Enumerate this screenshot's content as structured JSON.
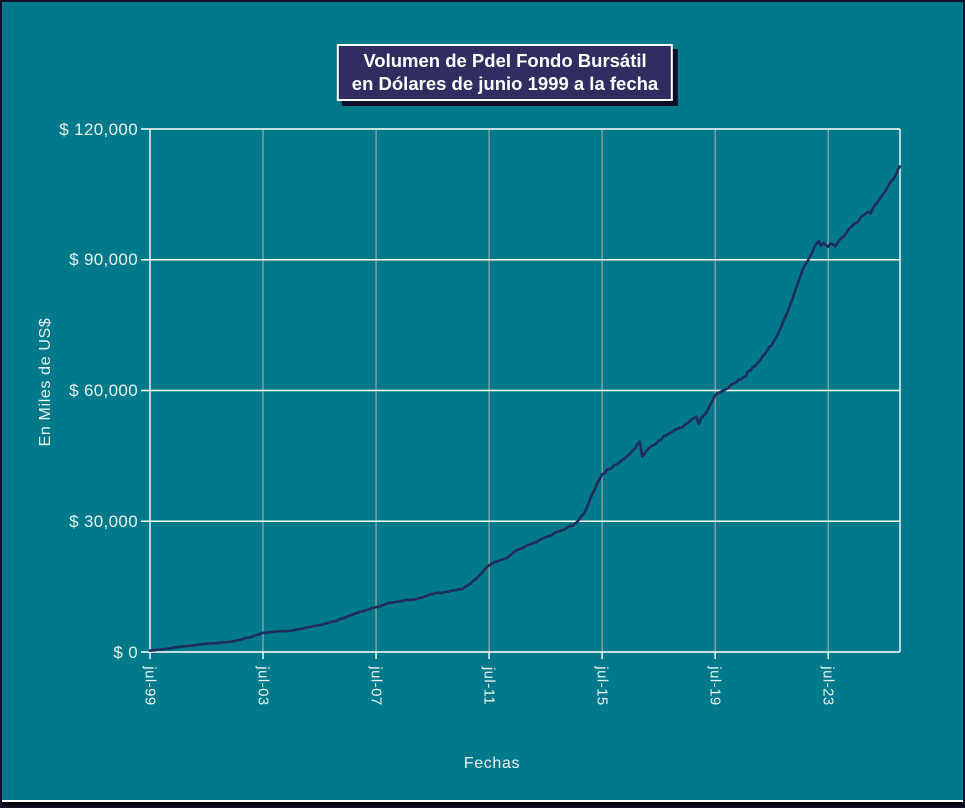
{
  "title": {
    "line1": "Volumen de PdeI Fondo Bursátil",
    "line2": "en Dólares de junio 1999 a la fecha"
  },
  "axes": {
    "y_title": "En Miles de US$",
    "x_title": "Fechas"
  },
  "chart_data": {
    "type": "line",
    "title": "Volumen de PdeI Fondo Bursátil en Dólares de junio 1999 a la fecha",
    "xlabel": "Fechas",
    "ylabel": "En Miles de US$",
    "ylim": [
      0,
      120000
    ],
    "grid": true,
    "legend": "none",
    "ytick_values": [
      0,
      30000,
      60000,
      90000,
      120000
    ],
    "ytick_labels": [
      "$ 0",
      "$ 30,000",
      "$ 60,000",
      "$ 90,000",
      "$ 120,000"
    ],
    "xtick_months": [
      0,
      48,
      96,
      144,
      192,
      240,
      288
    ],
    "xtick_labels": [
      "jul-99",
      "jul-03",
      "jul-07",
      "jul-11",
      "jul-15",
      "jul-19",
      "jul-23"
    ],
    "x_months_max": 318.5,
    "colors": {
      "background": "#00798A",
      "line": "#202D5A",
      "h_grid": "#FFFFFF",
      "v_grid": "#A6A6A6",
      "labels": "#EAF2F2",
      "title_bg": "#302E60",
      "title_shadow": "#0D0D26"
    },
    "series": [
      {
        "points": [
          [
            0,
            300
          ],
          [
            3,
            500
          ],
          [
            6,
            700
          ],
          [
            9,
            900
          ],
          [
            12,
            1100
          ],
          [
            15,
            1300
          ],
          [
            18,
            1500
          ],
          [
            21,
            1700
          ],
          [
            24,
            1900
          ],
          [
            27,
            2000
          ],
          [
            30,
            2150
          ],
          [
            33,
            2300
          ],
          [
            36,
            2500
          ],
          [
            39,
            2900
          ],
          [
            42,
            3300
          ],
          [
            45,
            3850
          ],
          [
            48,
            4400
          ],
          [
            51,
            4550
          ],
          [
            54,
            4700
          ],
          [
            57,
            4800
          ],
          [
            60,
            4900
          ],
          [
            63,
            5200
          ],
          [
            66,
            5600
          ],
          [
            69,
            5900
          ],
          [
            72,
            6200
          ],
          [
            75,
            6600
          ],
          [
            78,
            7000
          ],
          [
            81,
            7600
          ],
          [
            84,
            8200
          ],
          [
            87,
            8800
          ],
          [
            90,
            9300
          ],
          [
            93,
            9800
          ],
          [
            96,
            10300
          ],
          [
            99,
            10800
          ],
          [
            102,
            11300
          ],
          [
            105,
            11550
          ],
          [
            108,
            11800
          ],
          [
            111,
            12050
          ],
          [
            114,
            12300
          ],
          [
            117,
            12800
          ],
          [
            120,
            13300
          ],
          [
            123,
            13550
          ],
          [
            126,
            13800
          ],
          [
            129,
            14100
          ],
          [
            132,
            14400
          ],
          [
            135,
            15300
          ],
          [
            138,
            16600
          ],
          [
            141,
            18200
          ],
          [
            144,
            19900
          ],
          [
            147,
            20700
          ],
          [
            150,
            21300
          ],
          [
            153,
            22200
          ],
          [
            156,
            23400
          ],
          [
            159,
            24100
          ],
          [
            162,
            24800
          ],
          [
            165,
            25550
          ],
          [
            168,
            26300
          ],
          [
            171,
            27000
          ],
          [
            174,
            27700
          ],
          [
            177,
            28450
          ],
          [
            180,
            29200
          ],
          [
            182,
            30200
          ],
          [
            184,
            31600
          ],
          [
            186,
            33800
          ],
          [
            188,
            36400
          ],
          [
            190,
            38900
          ],
          [
            192,
            40800
          ],
          [
            195,
            41900
          ],
          [
            198,
            43000
          ],
          [
            201,
            44200
          ],
          [
            204,
            45600
          ],
          [
            206,
            46700
          ],
          [
            208,
            48300
          ],
          [
            209,
            44900
          ],
          [
            211,
            46300
          ],
          [
            214,
            47500
          ],
          [
            216,
            48500
          ],
          [
            219,
            49600
          ],
          [
            222,
            50600
          ],
          [
            225,
            51500
          ],
          [
            228,
            52400
          ],
          [
            230,
            53300
          ],
          [
            232,
            54000
          ],
          [
            233,
            52300
          ],
          [
            234,
            53600
          ],
          [
            236,
            54700
          ],
          [
            238,
            56800
          ],
          [
            240,
            58900
          ],
          [
            243,
            59900
          ],
          [
            246,
            60800
          ],
          [
            249,
            61900
          ],
          [
            252,
            63100
          ],
          [
            255,
            64600
          ],
          [
            258,
            66300
          ],
          [
            261,
            68300
          ],
          [
            264,
            70400
          ],
          [
            266,
            72300
          ],
          [
            268,
            74600
          ],
          [
            270,
            77100
          ],
          [
            272,
            79900
          ],
          [
            274,
            82900
          ],
          [
            276,
            86000
          ],
          [
            278,
            88600
          ],
          [
            280,
            90500
          ],
          [
            282,
            92800
          ],
          [
            283,
            93600
          ],
          [
            284,
            94300
          ],
          [
            285,
            93200
          ],
          [
            286,
            93900
          ],
          [
            288,
            93000
          ],
          [
            289,
            93700
          ],
          [
            291,
            93100
          ],
          [
            292,
            93900
          ],
          [
            294,
            95100
          ],
          [
            296,
            96400
          ],
          [
            297,
            97200
          ],
          [
            299,
            98300
          ],
          [
            301,
            99000
          ],
          [
            303,
            100200
          ],
          [
            305,
            101000
          ],
          [
            306,
            100600
          ],
          [
            307,
            101800
          ],
          [
            309,
            103200
          ],
          [
            311,
            104800
          ],
          [
            313,
            106400
          ],
          [
            315,
            108200
          ],
          [
            317,
            109800
          ],
          [
            318.5,
            111400
          ]
        ]
      }
    ]
  }
}
